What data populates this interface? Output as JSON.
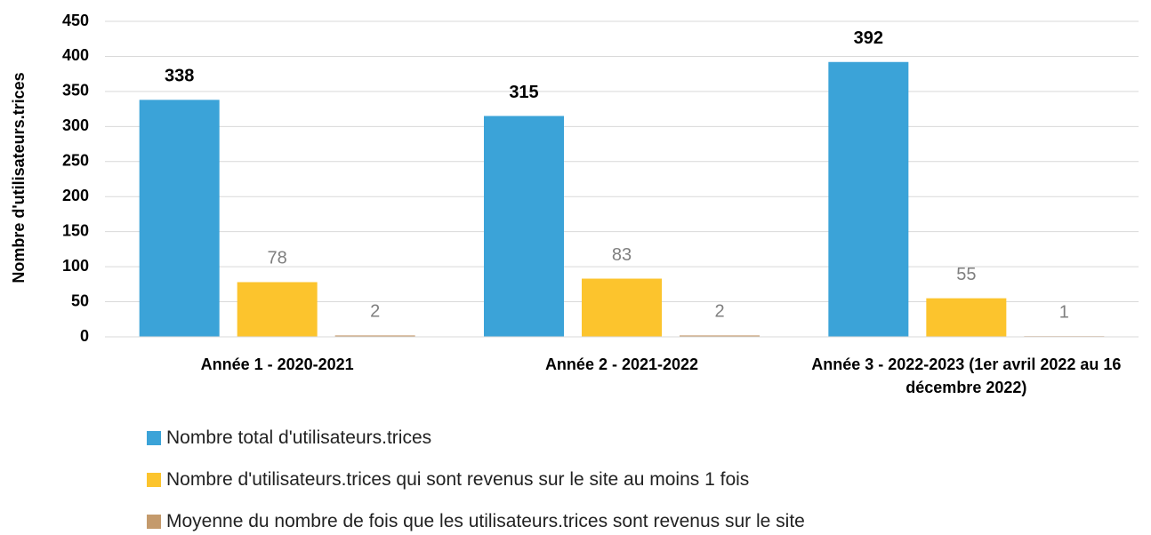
{
  "chart_data": {
    "type": "bar",
    "y_label": "Nombre d'utilisateurs.trices",
    "categories": [
      "Année 1 - 2020-2021",
      "Année 2 - 2021-2022",
      "Année 3 - 2022-2023 (1er avril 2022 au 16 décembre 2022)"
    ],
    "series": [
      {
        "name": "Nombre total d'utilisateurs.trices",
        "color": "#3ba3d8",
        "values": [
          338,
          315,
          392
        ]
      },
      {
        "name": "Nombre d'utilisateurs.trices qui sont revenus sur le site au moins 1 fois",
        "color": "#fcc42d",
        "values": [
          78,
          83,
          55
        ]
      },
      {
        "name": "Moyenne du nombre de fois que les utilisateurs.trices sont revenus sur le site",
        "color": "#c49a6c",
        "values": [
          2,
          2,
          1
        ]
      }
    ],
    "ylim": [
      0,
      450
    ],
    "yticks": [
      0,
      50,
      100,
      150,
      200,
      250,
      300,
      350,
      400,
      450
    ],
    "grid": true
  }
}
